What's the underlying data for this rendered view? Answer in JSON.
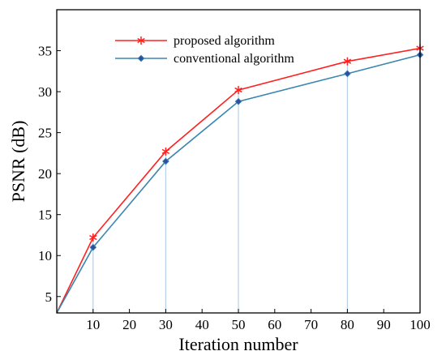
{
  "chart_data": {
    "type": "line",
    "title": "",
    "xlabel": "Iteration number",
    "ylabel": "PSNR (dB)",
    "xlim": [
      0,
      100
    ],
    "ylim": [
      3,
      40
    ],
    "xticks": [
      10,
      20,
      30,
      40,
      50,
      60,
      70,
      80,
      90,
      100
    ],
    "yticks": [
      5,
      10,
      15,
      20,
      25,
      30,
      35
    ],
    "grid": false,
    "legend_position": "top-center",
    "series": [
      {
        "name": "proposed algorithm",
        "marker": "asterisk",
        "color": "#ff2020",
        "x": [
          0,
          10,
          30,
          50,
          80,
          100
        ],
        "values": [
          3,
          12.2,
          22.7,
          30.2,
          33.7,
          35.3
        ]
      },
      {
        "name": "conventional algorithm",
        "marker": "diamond",
        "color": "#3a86b0",
        "x": [
          0,
          10,
          30,
          50,
          80,
          100
        ],
        "values": [
          3,
          11.0,
          21.5,
          28.8,
          32.2,
          34.5
        ]
      }
    ],
    "drop_lines_at": [
      10,
      30,
      50,
      80
    ],
    "drop_line_color": "#b8d0e8",
    "marker_fill_color": "#2e4fa0"
  }
}
